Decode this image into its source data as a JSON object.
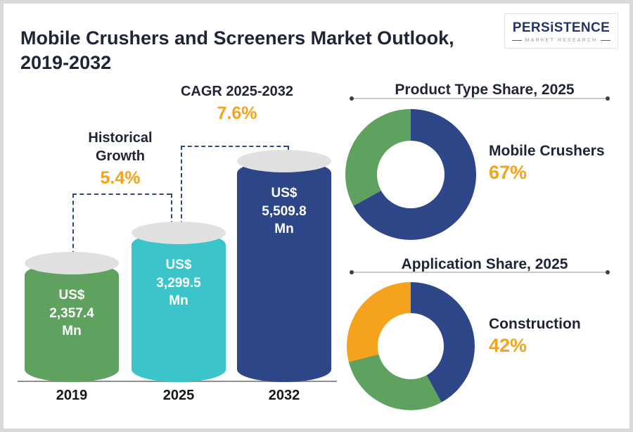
{
  "header": {
    "title": "Mobile Crushers and Screeners Market Outlook, 2019-2032",
    "logo": {
      "name": "PERSiSTENCE",
      "subtitle": "MARKET RESEARCH"
    }
  },
  "colors": {
    "navy": "#2d4687",
    "teal": "#3bc4c9",
    "green": "#5fa25f",
    "orange": "#f5a21c",
    "text_dark": "#1f2537",
    "cylinder_top": "#e0e0e0"
  },
  "chart_data": [
    {
      "type": "bar",
      "title": "Mobile Crushers and Screeners Market Outlook, 2019-2032",
      "categories": [
        "2019",
        "2025",
        "2032"
      ],
      "values": [
        2357.4,
        3299.5,
        5509.8
      ],
      "value_labels": [
        "US$ 2,357.4 Mn",
        "US$ 3,299.5 Mn",
        "US$ 5,509.8 Mn"
      ],
      "unit": "US$ Mn",
      "bar_colors": [
        "#5fa25f",
        "#3bc4c9",
        "#2d4687"
      ],
      "grid": false,
      "annotations": [
        {
          "label": "Historical Growth",
          "value": "5.4%",
          "from": "2019",
          "to": "2025"
        },
        {
          "label": "CAGR 2025-2032",
          "value": "7.6%",
          "from": "2025",
          "to": "2032"
        }
      ]
    },
    {
      "type": "pie",
      "title": "Product Type Share, 2025",
      "legend": "none",
      "slices": [
        {
          "label": "Mobile Crushers",
          "value": 67,
          "color": "#2d4687"
        },
        {
          "label": "",
          "value": 33,
          "color": "#5fa25f"
        }
      ],
      "callout": {
        "label": "Mobile Crushers",
        "value": "67%"
      }
    },
    {
      "type": "pie",
      "title": "Application Share, 2025",
      "legend": "none",
      "slices": [
        {
          "label": "Construction",
          "value": 42,
          "color": "#2d4687"
        },
        {
          "label": "",
          "value": 29,
          "color": "#5fa25f"
        },
        {
          "label": "",
          "value": 29,
          "color": "#f5a21c"
        }
      ],
      "callout": {
        "label": "Construction",
        "value": "42%"
      }
    }
  ]
}
